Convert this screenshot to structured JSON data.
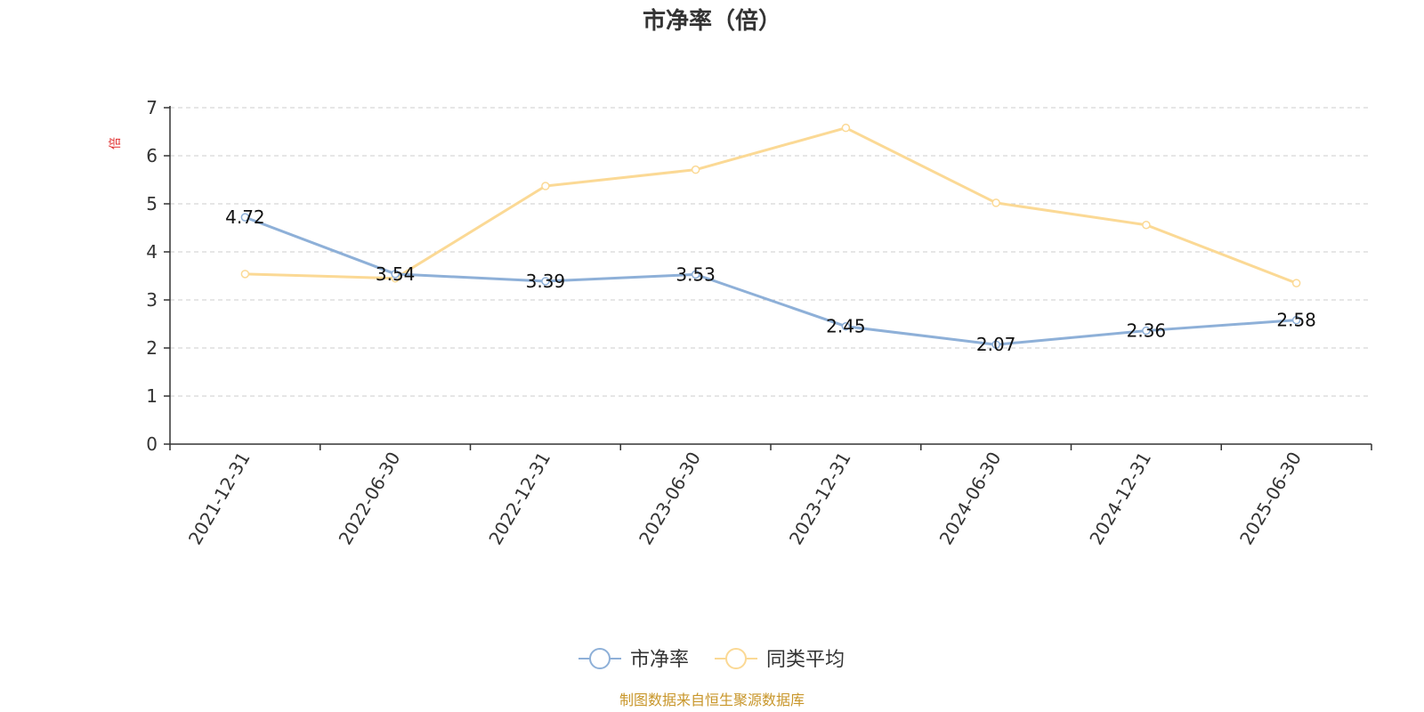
{
  "chart_data": {
    "type": "line",
    "title": "市净率（倍）",
    "ylabel": "倍",
    "xlabel": "",
    "categories": [
      "2021-12-31",
      "2022-06-30",
      "2022-12-31",
      "2023-06-30",
      "2023-12-31",
      "2024-06-30",
      "2024-12-31",
      "2025-06-30"
    ],
    "ylim": [
      0,
      7
    ],
    "yticks": [
      "0",
      "1",
      "2",
      "3",
      "4",
      "5",
      "6",
      "7"
    ],
    "grid": true,
    "legend_position": "bottom-center",
    "series": [
      {
        "name": "市净率",
        "values": [
          4.72,
          3.54,
          3.39,
          3.53,
          2.45,
          2.07,
          2.36,
          2.58
        ],
        "labels": [
          "4.72",
          "3.54",
          "3.39",
          "3.53",
          "2.45",
          "2.07",
          "2.36",
          "2.58"
        ],
        "color": "#8eb0d8"
      },
      {
        "name": "同类平均",
        "values": [
          3.54,
          3.45,
          5.37,
          5.71,
          6.58,
          5.02,
          4.56,
          3.35
        ],
        "color": "#fbd995"
      }
    ],
    "source": "制图数据来自恒生聚源数据库",
    "colors": {
      "ylabel": "#e03030",
      "source": "#c8962a",
      "grid": "#cccccc",
      "axis": "#333333"
    }
  }
}
